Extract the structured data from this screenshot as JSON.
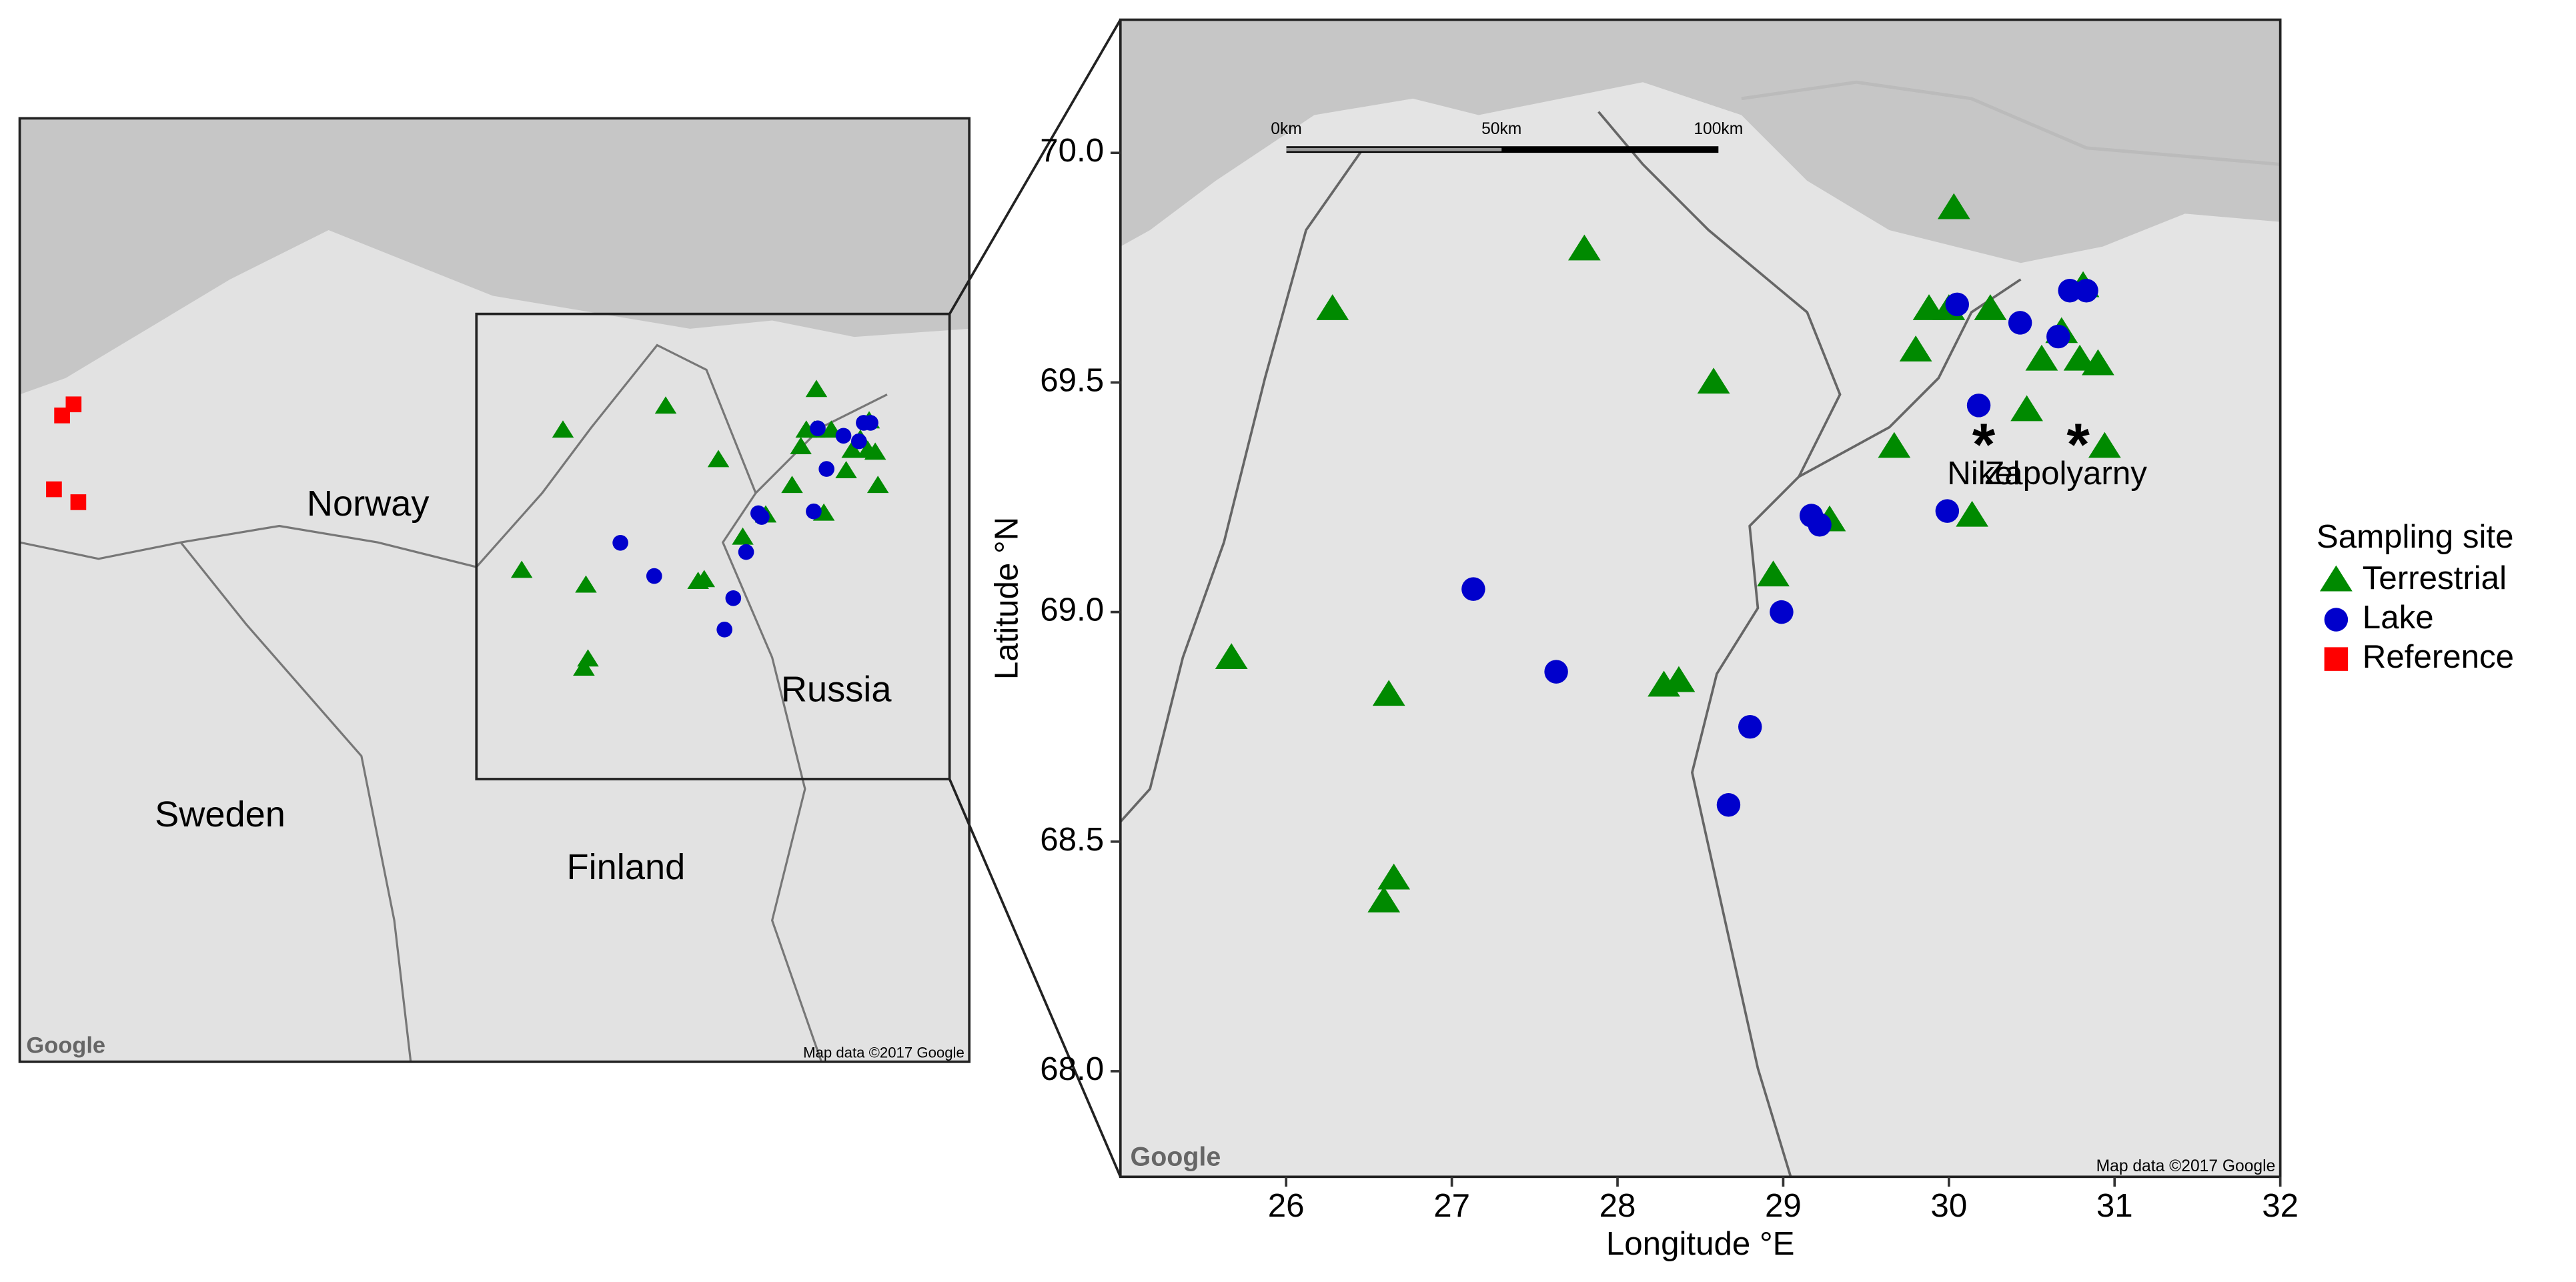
{
  "chart_data": {
    "type": "scatter",
    "xlabel": "Longitude °E",
    "ylabel": "Latitude °N",
    "xlim": [
      25,
      32
    ],
    "ylim": [
      67.77,
      70.29
    ],
    "xticks": [
      26,
      27,
      28,
      29,
      30,
      31,
      32
    ],
    "yticks": [
      {
        "value": 68,
        "label": "68.0"
      },
      {
        "value": 68.5,
        "label": "68.5"
      },
      {
        "value": 69,
        "label": "69.0"
      },
      {
        "value": 69.5,
        "label": "69.5"
      },
      {
        "value": 70,
        "label": "70.0"
      }
    ],
    "legend_title": "Sampling site",
    "series": [
      {
        "name": "Terrestrial",
        "color": "#008a00",
        "marker": "triangle",
        "x": [
          30.03,
          27.8,
          26.28,
          29.88,
          30.0,
          30.25,
          29.8,
          30.56,
          30.79,
          30.9,
          30.68,
          30.81,
          28.58,
          30.47,
          29.67,
          30.94,
          30.14,
          29.28,
          28.94,
          25.67,
          26.62,
          28.37,
          28.28,
          26.65,
          26.59
        ],
        "y": [
          69.88,
          69.79,
          69.66,
          69.66,
          69.66,
          69.66,
          69.57,
          69.55,
          69.55,
          69.54,
          69.61,
          69.71,
          69.5,
          69.44,
          69.36,
          69.36,
          69.21,
          69.2,
          69.08,
          68.9,
          68.82,
          68.85,
          68.84,
          68.42,
          68.37
        ]
      },
      {
        "name": "Lake",
        "color": "#0000cc",
        "marker": "circle",
        "x": [
          30.05,
          30.43,
          30.73,
          30.83,
          30.66,
          30.18,
          29.99,
          29.17,
          29.22,
          27.13,
          28.99,
          27.63,
          28.8,
          28.67
        ],
        "y": [
          69.67,
          69.63,
          69.7,
          69.7,
          69.6,
          69.45,
          69.22,
          69.21,
          69.19,
          69.05,
          69.0,
          68.87,
          68.75,
          68.58
        ]
      },
      {
        "name": "Reference",
        "color": "#ff0000",
        "marker": "square",
        "x": [
          18.87,
          19.04,
          18.75,
          19.11
        ],
        "y": [
          69.74,
          69.8,
          69.34,
          69.27
        ]
      }
    ],
    "annotations": [
      {
        "label": "Nikel",
        "x": 30.21,
        "y": 69.39
      },
      {
        "label": "Zapolyarny",
        "x": 30.78,
        "y": 69.39
      }
    ]
  },
  "scale_bar": {
    "labels": [
      "0km",
      "50km",
      "100km"
    ]
  },
  "overview_labels": [
    "Norway",
    "Sweden",
    "Finland",
    "Russia"
  ],
  "attribution": "Map data ©2017 Google",
  "logo": "Google"
}
